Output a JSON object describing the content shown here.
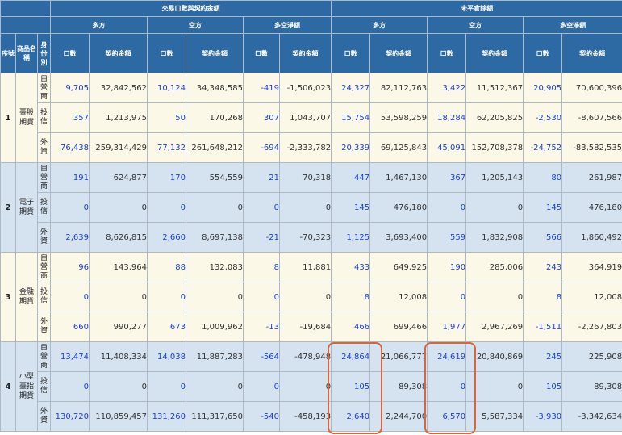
{
  "headers": {
    "seq": "序號",
    "product": "商品名稱",
    "identity": "身份別",
    "group_trading": "交易口數與契約金額",
    "group_oi": "未平倉餘額",
    "long": "多方",
    "short": "空方",
    "net": "多空淨額",
    "qty": "口數",
    "amount": "契約金額"
  },
  "roles": [
    "自營商",
    "投信",
    "外資"
  ],
  "groups": [
    {
      "index": "1",
      "name": "臺股期貨",
      "rows": [
        [
          "9,705",
          "32,842,562",
          "10,124",
          "34,348,585",
          "-419",
          "-1,506,023",
          "24,327",
          "82,112,763",
          "3,422",
          "11,512,367",
          "20,905",
          "70,600,396"
        ],
        [
          "357",
          "1,213,975",
          "50",
          "170,268",
          "307",
          "1,043,707",
          "15,754",
          "53,598,259",
          "18,284",
          "62,205,825",
          "-2,530",
          "-8,607,566"
        ],
        [
          "76,438",
          "259,314,429",
          "77,132",
          "261,648,212",
          "-694",
          "-2,333,782",
          "20,339",
          "69,125,843",
          "45,091",
          "152,708,378",
          "-24,752",
          "-83,582,535"
        ]
      ]
    },
    {
      "index": "2",
      "name": "電子期貨",
      "rows": [
        [
          "191",
          "624,877",
          "170",
          "554,559",
          "21",
          "70,318",
          "447",
          "1,467,130",
          "367",
          "1,205,143",
          "80",
          "261,987"
        ],
        [
          "0",
          "0",
          "0",
          "0",
          "0",
          "0",
          "145",
          "476,180",
          "0",
          "0",
          "145",
          "476,180"
        ],
        [
          "2,639",
          "8,626,815",
          "2,660",
          "8,697,138",
          "-21",
          "-70,323",
          "1,125",
          "3,693,400",
          "559",
          "1,832,908",
          "566",
          "1,860,492"
        ]
      ]
    },
    {
      "index": "3",
      "name": "金融期貨",
      "rows": [
        [
          "96",
          "143,964",
          "88",
          "132,083",
          "8",
          "11,881",
          "433",
          "649,925",
          "190",
          "285,006",
          "243",
          "364,919"
        ],
        [
          "0",
          "0",
          "0",
          "0",
          "0",
          "0",
          "8",
          "12,008",
          "0",
          "0",
          "8",
          "12,008"
        ],
        [
          "660",
          "990,277",
          "673",
          "1,009,962",
          "-13",
          "-19,684",
          "466",
          "699,466",
          "1,977",
          "2,967,269",
          "-1,511",
          "-2,267,803"
        ]
      ]
    },
    {
      "index": "4",
      "name": "小型臺指期貨",
      "rows": [
        [
          "13,474",
          "11,408,334",
          "14,038",
          "11,887,283",
          "-564",
          "-478,948",
          "24,864",
          "21,066,777",
          "24,619",
          "20,840,869",
          "245",
          "225,908"
        ],
        [
          "0",
          "0",
          "0",
          "0",
          "0",
          "0",
          "105",
          "89,308",
          "0",
          "0",
          "105",
          "89,308"
        ],
        [
          "130,720",
          "110,859,457",
          "131,260",
          "111,317,650",
          "-540",
          "-458,193",
          "2,640",
          "2,244,700",
          "6,570",
          "5,587,334",
          "-3,930",
          "-3,342,634"
        ]
      ]
    }
  ]
}
